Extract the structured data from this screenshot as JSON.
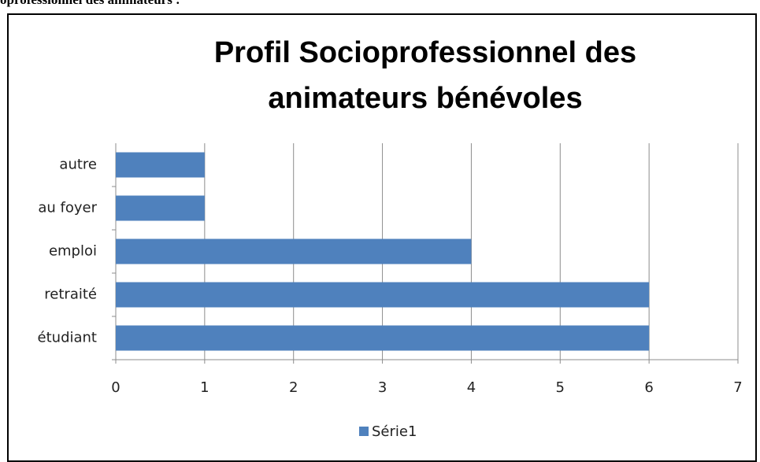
{
  "chart_data": {
    "type": "bar",
    "orientation": "horizontal",
    "annotation": "oprofessionnel des animateurs :",
    "title": "Profil Socioprofessionnel des animateurs bénévoles",
    "categories": [
      "étudiant",
      "retraité",
      "emploi",
      "au foyer",
      "autre"
    ],
    "series": [
      {
        "name": "Série1",
        "color": "#4f81bd",
        "values": [
          6,
          6,
          4,
          1,
          1
        ]
      }
    ],
    "xlim": [
      0,
      7
    ],
    "xticks": [
      0,
      1,
      2,
      3,
      4,
      5,
      6,
      7
    ],
    "grid": true,
    "legend": "bottom"
  }
}
